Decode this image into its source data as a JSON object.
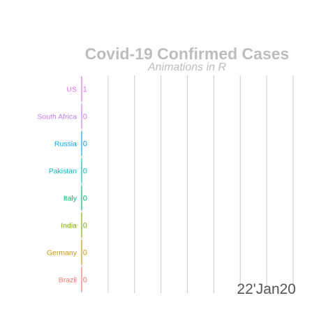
{
  "chart_data": {
    "type": "bar",
    "orientation": "horizontal",
    "title": "Covid-19 Confirmed Cases",
    "subtitle": "Animations in R",
    "date_label": "22'Jan20",
    "xlabel": "",
    "ylabel": "",
    "grid": "vertical",
    "legend": "none",
    "categories": [
      "US",
      "South Africa",
      "Russia",
      "Pakistan",
      "Italy",
      "India",
      "Germany",
      "Brazil"
    ],
    "values": [
      1,
      0,
      0,
      0,
      0,
      0,
      0,
      0
    ],
    "value_labels": [
      "1",
      "0",
      "0",
      "0",
      "0",
      "0",
      "0",
      "0"
    ],
    "colors": [
      "#e76bf3",
      "#c77cff",
      "#00a9ff",
      "#00bfc4",
      "#00be67",
      "#7cae00",
      "#cd9600",
      "#f8766d"
    ]
  }
}
